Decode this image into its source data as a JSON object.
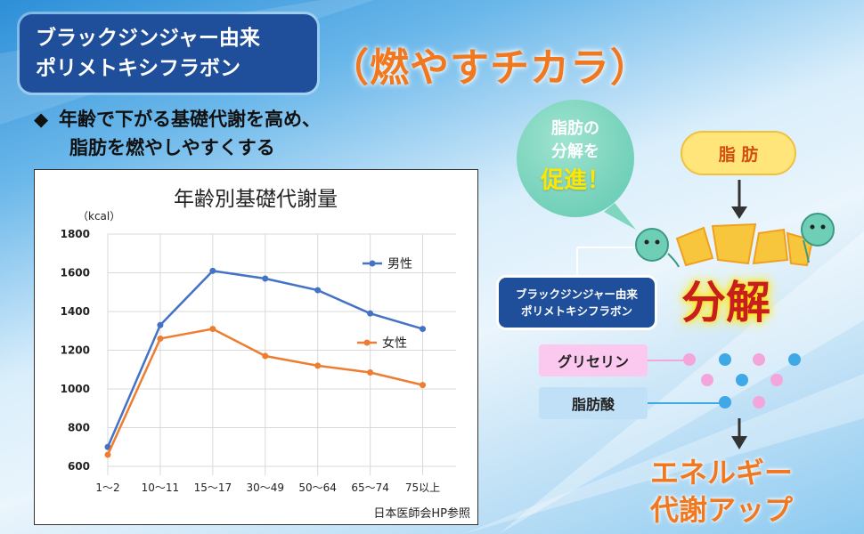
{
  "title_box": {
    "line1": "ブラックジンジャー由来",
    "line2": "ポリメトキシフラボン"
  },
  "headline": "（燃やすチカラ）",
  "bullet": {
    "mark": "◆",
    "line1": "年齢で下がる基礎代謝を高め、",
    "line2": "脂肪を燃やしやすくする"
  },
  "chart_data": {
    "type": "line",
    "title": "年齢別基礎代謝量",
    "ylabel": "（kcal）",
    "categories": [
      "1～2",
      "10～11",
      "15～17",
      "30～49",
      "50～64",
      "65～74",
      "75以上"
    ],
    "ylim": [
      600,
      1800
    ],
    "yticks": [
      "1800",
      "1600",
      "1400",
      "1200",
      "1000",
      "800",
      "600"
    ],
    "series": [
      {
        "name": "男性",
        "color": "#4472c4",
        "values": [
          700,
          1330,
          1610,
          1570,
          1510,
          1390,
          1310
        ]
      },
      {
        "name": "女性",
        "color": "#ed7d31",
        "values": [
          660,
          1260,
          1310,
          1170,
          1120,
          1085,
          1020
        ]
      }
    ],
    "grid": true,
    "source": "日本医師会HP参照"
  },
  "diagram": {
    "bubble_line1": "脂肪の",
    "bubble_line2": "分解を",
    "bubble_line3": "促進！",
    "fat_label": "脂 肪",
    "compound_line1": "ブラックジンジャー由来",
    "compound_line2": "ポリメトキシフラボン",
    "breakdown": "分解",
    "glycerin": "グリセリン",
    "fatty_acid": "脂肪酸",
    "energy_line1": "エネルギー",
    "energy_line2": "代謝アップ",
    "colors": {
      "pink": "#f4a6dc",
      "blue": "#3fa8e6"
    }
  }
}
